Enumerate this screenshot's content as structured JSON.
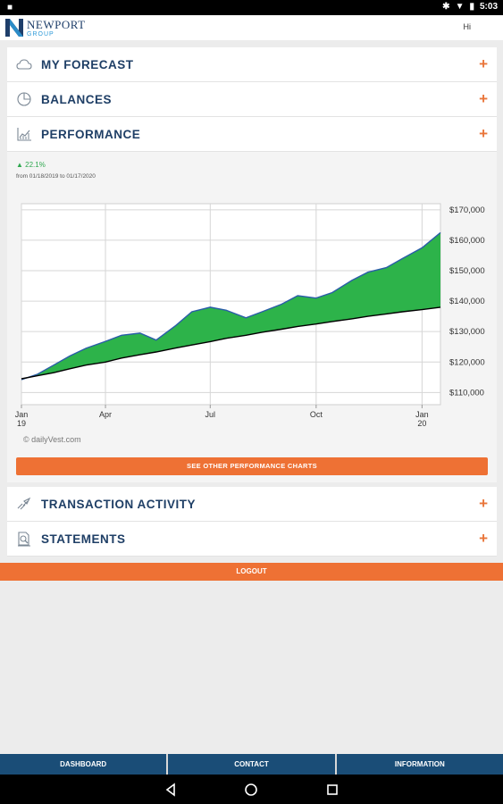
{
  "status_bar": {
    "time": "5:03"
  },
  "header": {
    "logo_main": "NEWPORT",
    "logo_sub": "GROUP",
    "greeting": "Hi"
  },
  "sections": {
    "forecast": {
      "label": "MY FORECAST",
      "icon": "cloud-icon"
    },
    "balances": {
      "label": "BALANCES",
      "icon": "pie-chart-icon"
    },
    "performance": {
      "label": "PERFORMANCE",
      "icon": "line-chart-icon"
    },
    "transactions": {
      "label": "TRANSACTION ACTIVITY",
      "icon": "transfer-icon"
    },
    "statements": {
      "label": "STATEMENTS",
      "icon": "document-search-icon"
    },
    "expand_symbol": "+"
  },
  "performance": {
    "gain": "▲ 22.1%",
    "date_range": "from 01/18/2019 to 01/17/2020",
    "credit": "dailyVest.com",
    "button_label": "SEE OTHER PERFORMANCE CHARTS"
  },
  "chart_data": {
    "type": "area",
    "x": [
      "2019-01-18",
      "2019-02-01",
      "2019-02-15",
      "2019-03-01",
      "2019-03-15",
      "2019-04-01",
      "2019-04-15",
      "2019-05-01",
      "2019-05-15",
      "2019-06-01",
      "2019-06-15",
      "2019-07-01",
      "2019-07-15",
      "2019-08-01",
      "2019-08-15",
      "2019-09-01",
      "2019-09-15",
      "2019-10-01",
      "2019-10-15",
      "2019-11-01",
      "2019-11-15",
      "2019-12-01",
      "2019-12-15",
      "2020-01-01",
      "2020-01-17"
    ],
    "series": [
      {
        "values": [
          114200,
          116000,
          119000,
          122000,
          124500,
          126800,
          128800,
          129500,
          127200,
          132000,
          136500,
          138000,
          137000,
          134500,
          136500,
          139000,
          141800,
          141000,
          142800,
          146800,
          149500,
          151000,
          154000,
          157500,
          162500
        ]
      },
      {
        "values": [
          114500,
          115500,
          116500,
          117800,
          119000,
          120000,
          121300,
          122400,
          123300,
          124600,
          125600,
          126700,
          127800,
          128800,
          129800,
          130800,
          131700,
          132500,
          133300,
          134200,
          135000,
          135800,
          136500,
          137200,
          138000
        ]
      }
    ],
    "fill_color": "#2db34a",
    "line_color": "#000000",
    "x_ticks": [
      {
        "label": "Jan",
        "sub": "19",
        "date": "2019-01-18"
      },
      {
        "label": "Apr",
        "sub": "",
        "date": "2019-04-01"
      },
      {
        "label": "Jul",
        "sub": "",
        "date": "2019-07-01"
      },
      {
        "label": "Oct",
        "sub": "",
        "date": "2019-10-01"
      },
      {
        "label": "Jan",
        "sub": "20",
        "date": "2020-01-01"
      }
    ],
    "y_ticks": [
      "$110,000",
      "$120,000",
      "$130,000",
      "$140,000",
      "$150,000",
      "$160,000",
      "$170,000"
    ],
    "ylim": [
      106000,
      172000
    ],
    "grid": true
  },
  "logout_label": "LOGOUT",
  "bottom_tabs": [
    "DASHBOARD",
    "CONTACT",
    "INFORMATION"
  ]
}
